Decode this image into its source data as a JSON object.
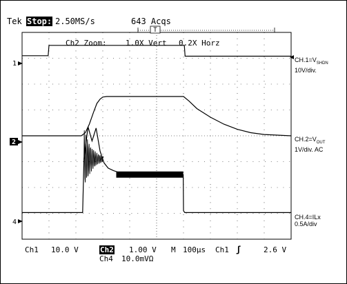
{
  "header": {
    "brand": "Tek",
    "run_state": "Stop:",
    "sample_rate": "2.50MS/s",
    "acqs": "643 Acqs"
  },
  "zoom": {
    "label": "Ch2 Zoom:",
    "vert": "1.0X Vert",
    "horz": "0.2X Horz"
  },
  "markers": {
    "ch1": "1",
    "ch2": "2",
    "ch4": "4",
    "trigger": "T"
  },
  "channel_labels": {
    "ch1_line1_prefix": "CH.1=V",
    "ch1_line1_sub": "SHDN",
    "ch1_line2": "10V/div.",
    "ch2_line1_prefix": "CH.2=V",
    "ch2_line1_sub": "OUT",
    "ch2_line2": "1V/div. AC",
    "ch4_line1": "CH.4=ILx",
    "ch4_line2": "0.5A/div"
  },
  "bottom": {
    "ch1_label": "Ch1",
    "ch1_scale": "10.0 V",
    "ch2_label": "Ch2",
    "ch2_scale": "1.00 V",
    "ch4_label": "Ch4",
    "ch4_scale": "10.0mVΩ",
    "m_label": "M",
    "timebase": "100µs",
    "trig_src": "Ch1",
    "trig_slope": "ʃ",
    "trig_level": "2.6 V"
  },
  "chart_data": {
    "type": "line",
    "x_unit": "divisions (100µs/div)",
    "xlim": [
      0,
      10
    ],
    "ylim": [
      -4,
      4
    ],
    "grid": true,
    "series": [
      {
        "name": "CH.1=VSHDN",
        "x": [
          0,
          0.97,
          1.0,
          6.03,
          6.06,
          10
        ],
        "y": [
          3.1,
          3.1,
          3.5,
          3.5,
          3.08,
          3.08
        ]
      },
      {
        "name": "CH.2=VOUT",
        "x": [
          0,
          2.2,
          2.35,
          2.5,
          2.65,
          2.78,
          2.9,
          3.0,
          3.15,
          6.0,
          6.2,
          6.5,
          7.0,
          7.5,
          8.0,
          8.5,
          9.0,
          10
        ],
        "y": [
          0,
          0,
          0.12,
          0.45,
          0.9,
          1.25,
          1.42,
          1.5,
          1.52,
          1.52,
          1.35,
          1.05,
          0.72,
          0.45,
          0.25,
          0.12,
          0.05,
          0.0
        ]
      },
      {
        "name": "CH.4=ILx",
        "x": [
          0,
          2.25,
          2.3,
          2.45,
          2.6,
          2.75,
          2.9,
          3.05,
          3.2,
          3.4,
          3.7,
          4.0,
          5.0,
          5.99,
          6.0,
          6.05,
          10
        ],
        "y": [
          -2.97,
          -2.97,
          -0.9,
          0.35,
          -0.2,
          0.3,
          -0.6,
          -1.05,
          -1.25,
          -1.35,
          -1.45,
          -1.5,
          -1.5,
          -1.5,
          -2.9,
          -2.97,
          -2.97
        ]
      }
    ]
  }
}
